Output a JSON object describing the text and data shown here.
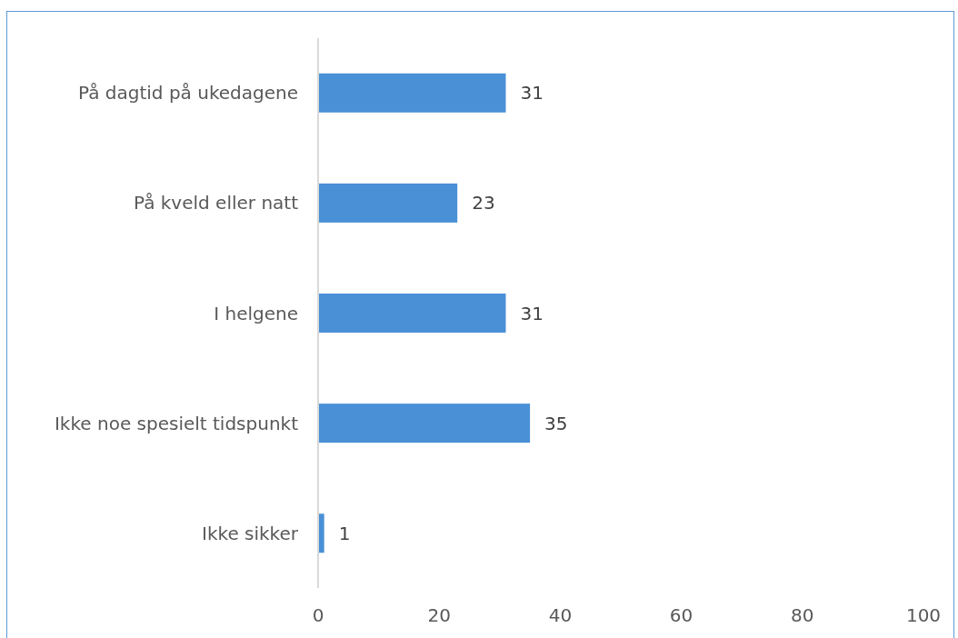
{
  "chart_data": {
    "type": "bar",
    "orientation": "horizontal",
    "categories": [
      "På dagtid på ukedagene",
      "På kveld eller natt",
      "I helgene",
      "Ikke noe spesielt tidspunkt",
      "Ikke sikker"
    ],
    "values": [
      31,
      23,
      31,
      35,
      1
    ],
    "color": "#4a90d6",
    "xlim": [
      0,
      100
    ],
    "xticks": [
      0,
      20,
      40,
      60,
      80,
      100
    ],
    "data_labels": true,
    "grid": false
  }
}
